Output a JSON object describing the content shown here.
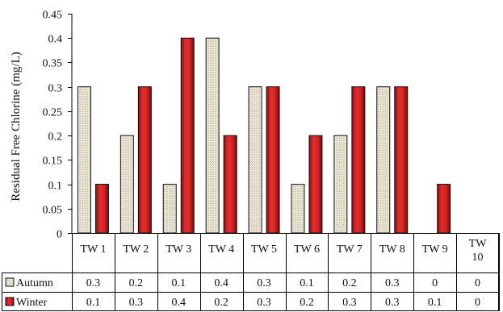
{
  "chart_data": {
    "type": "bar",
    "ylabel": "Residual Free Chlorine (mg/L)",
    "ylim": [
      0,
      0.45
    ],
    "yticks": [
      "0",
      "0.05",
      "0.1",
      "0.15",
      "0.2",
      "0.25",
      "0.3",
      "0.35",
      "0.4",
      "0.45"
    ],
    "categories": [
      [
        "TW 1"
      ],
      [
        "TW 2"
      ],
      [
        "TW 3"
      ],
      [
        "TW 4"
      ],
      [
        "TW 5"
      ],
      [
        "TW 6"
      ],
      [
        "TW 7"
      ],
      [
        "TW 8"
      ],
      [
        "TW 9"
      ],
      [
        "TW",
        "10"
      ]
    ],
    "series": [
      {
        "name": "Autumn",
        "values": [
          0.3,
          0.2,
          0.1,
          0.4,
          0.3,
          0.1,
          0.2,
          0.3,
          0,
          0
        ],
        "labels": [
          "0.3",
          "0.2",
          "0.1",
          "0.4",
          "0.3",
          "0.1",
          "0.2",
          "0.3",
          "0",
          "0"
        ],
        "color": "#e8e2d2"
      },
      {
        "name": "Winter",
        "values": [
          0.1,
          0.3,
          0.4,
          0.2,
          0.3,
          0.2,
          0.3,
          0.3,
          0.1,
          0
        ],
        "labels": [
          "0.1",
          "0.3",
          "0.4",
          "0.2",
          "0.3",
          "0.2",
          "0.3",
          "0.3",
          "0.1",
          "0"
        ],
        "color": "#cc2222"
      }
    ],
    "legend_placement": "data-table-left",
    "data_table": true
  }
}
